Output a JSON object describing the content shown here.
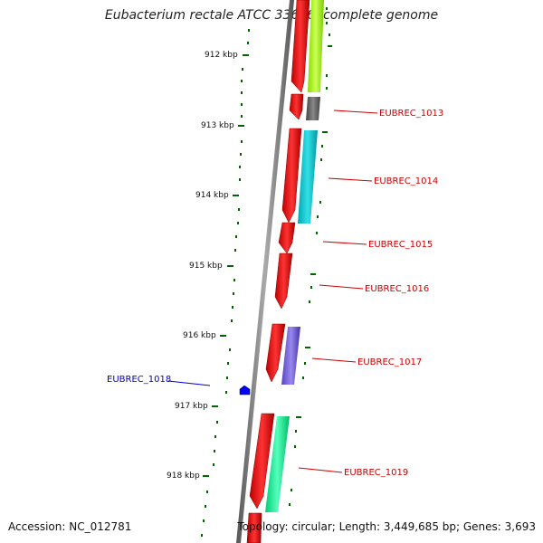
{
  "header": {
    "title": "Eubacterium rectale ATCC 33656, complete genome"
  },
  "footer": {
    "accession": "Accession: NC_012781",
    "summary": "Topology: circular; Length: 3,449,685 bp; Genes: 3,693"
  },
  "scale": {
    "ticks": [
      "912 kbp",
      "913 kbp",
      "914 kbp",
      "915 kbp",
      "916 kbp",
      "917 kbp",
      "918 kbp"
    ]
  },
  "genes": [
    {
      "label": "EUBREC_1013",
      "color": "#cc0000"
    },
    {
      "label": "EUBREC_1014",
      "color": "#cc0000"
    },
    {
      "label": "EUBREC_1015",
      "color": "#cc0000"
    },
    {
      "label": "EUBREC_1016",
      "color": "#cc0000"
    },
    {
      "label": "EUBREC_1017",
      "color": "#cc0000"
    },
    {
      "label": "EUBREC_1018",
      "color": "#0000cc"
    },
    {
      "label": "EUBREC_1019",
      "color": "#cc0000"
    }
  ],
  "colors": {
    "forward_strand": "#ff0000",
    "reverse_strand": "#0000ee",
    "backbone": "#808080",
    "tick_marks": "#006400",
    "cog_tracks": [
      "#aaff22",
      "#666666",
      "#11cccc",
      "#7766dd",
      "#22ee99"
    ]
  }
}
